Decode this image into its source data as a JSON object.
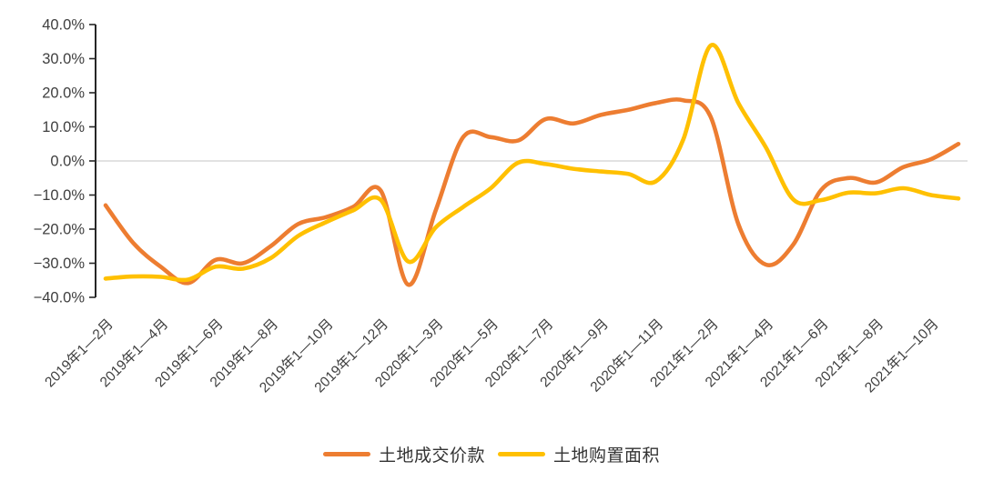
{
  "chart_data": {
    "type": "line",
    "smoothed": true,
    "categories": [
      "2019年1—2月",
      "",
      "2019年1—4月",
      "",
      "2019年1—6月",
      "",
      "2019年1—8月",
      "",
      "2019年1—10月",
      "",
      "2019年1—12月",
      "",
      "2020年1—3月",
      "",
      "2020年1—5月",
      "",
      "2020年1—7月",
      "",
      "2020年1—9月",
      "",
      "2020年1—11月",
      "",
      "2021年1—2月",
      "",
      "2021年1—4月",
      "",
      "2021年1—6月",
      "",
      "2021年1—8月",
      "",
      "2021年1—10月",
      ""
    ],
    "series": [
      {
        "name": "土地成交价款",
        "color": "#ED7D31",
        "values": [
          -13.0,
          -24.0,
          -31.0,
          -35.8,
          -29.0,
          -30.0,
          -25.0,
          -18.5,
          -16.5,
          -13.5,
          -8.7,
          -36.3,
          -14.5,
          7.0,
          7.0,
          6.0,
          12.3,
          11.0,
          13.5,
          15.0,
          17.0,
          17.8,
          12.8,
          -18.5,
          -30.4,
          -24.5,
          -8.6,
          -5.0,
          -6.3,
          -1.8,
          0.5,
          5.0
        ]
      },
      {
        "name": "土地购置面积",
        "color": "#FFC000",
        "values": [
          -34.5,
          -33.9,
          -34.0,
          -34.8,
          -31.0,
          -31.6,
          -28.5,
          -22.0,
          -18.0,
          -14.5,
          -11.4,
          -29.5,
          -19.5,
          -13.5,
          -8.0,
          -0.5,
          -0.9,
          -2.3,
          -3.1,
          -3.8,
          -6.0,
          6.3,
          33.9,
          17.0,
          4.0,
          -11.3,
          -11.5,
          -9.3,
          -9.5,
          -8.0,
          -10.0,
          -11.0
        ]
      }
    ],
    "ylim": [
      -40,
      40
    ],
    "y_tick_step": 10,
    "y_tick_labels": [
      "40.0%",
      "30.0%",
      "20.0%",
      "10.0%",
      "0.0%",
      "−10.0%",
      "−20.0%",
      "−30.0%",
      "−40.0%"
    ],
    "x_label_interval": 2,
    "grid": "zero-baseline-only",
    "legend_position": "bottom"
  },
  "legend": {
    "items": [
      {
        "label": "土地成交价款",
        "color": "#ED7D31"
      },
      {
        "label": "土地购置面积",
        "color": "#FFC000"
      }
    ]
  },
  "colors": {
    "background": "#FFFFFF",
    "axis": "#262626",
    "tick_label": "#3F3F3F",
    "zero_line": "#D9D9D9"
  }
}
